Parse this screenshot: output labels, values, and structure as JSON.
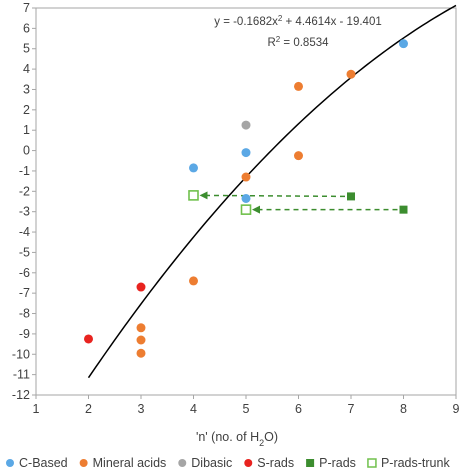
{
  "chart_data": {
    "type": "scatter",
    "x_axis": {
      "range": [
        1,
        9
      ],
      "ticks": [
        "1",
        "2",
        "3",
        "4",
        "5",
        "6",
        "7",
        "8",
        "9"
      ],
      "label_main": "'n' (no. of H",
      "label_sub": "2",
      "label_end": "O)"
    },
    "y_axis": {
      "range": [
        -12,
        7
      ],
      "ticks": [
        "-12",
        "-11",
        "-10",
        "-9",
        "-8",
        "-7",
        "-6",
        "-5",
        "-4",
        "-3",
        "-2",
        "-1",
        "0",
        "1",
        "2",
        "3",
        "4",
        "5",
        "6",
        "7"
      ]
    },
    "grid": false,
    "legend_position": "bottom",
    "series": [
      {
        "name": "C-Based",
        "marker": "circle",
        "color": "#5ba8e5",
        "points": [
          [
            4,
            -0.85
          ],
          [
            5,
            -0.1
          ],
          [
            5,
            -2.35
          ],
          [
            8,
            5.25
          ]
        ]
      },
      {
        "name": "Mineral acids",
        "marker": "circle",
        "color": "#ed7d31",
        "points": [
          [
            3,
            -8.7
          ],
          [
            3,
            -9.3
          ],
          [
            3,
            -9.95
          ],
          [
            4,
            -6.4
          ],
          [
            5,
            -1.3
          ],
          [
            6,
            3.15
          ],
          [
            6,
            -0.25
          ],
          [
            7,
            3.75
          ]
        ]
      },
      {
        "name": "Dibasic",
        "marker": "circle",
        "color": "#a5a5a5",
        "points": [
          [
            5,
            1.25
          ]
        ]
      },
      {
        "name": "S-rads",
        "marker": "circle",
        "color": "#e8231f",
        "points": [
          [
            2,
            -9.25
          ],
          [
            3,
            -6.7
          ]
        ]
      },
      {
        "name": "P-rads",
        "marker": "square-filled",
        "color": "#3c8d2f",
        "points": [
          [
            7,
            -2.25
          ],
          [
            8,
            -2.9
          ]
        ]
      },
      {
        "name": "P-rads-trunk",
        "marker": "square-open",
        "color": "#70c04c",
        "points": [
          [
            4,
            -2.2
          ],
          [
            5,
            -2.9
          ]
        ]
      }
    ],
    "trendline": {
      "type": "polynomial",
      "coefficients": [
        -0.1682,
        4.4614,
        -19.401
      ],
      "x_range": [
        2,
        9
      ],
      "color": "#000000",
      "equation_text": "y = -0.1682x",
      "equation_sup": "2",
      "equation_rest": " + 4.4614x - 19.401",
      "r2_text": "R",
      "r2_sup": "2",
      "r2_rest": " = 0.8534"
    },
    "arrows": [
      {
        "from": [
          7,
          -2.25
        ],
        "to": [
          4,
          -2.2
        ],
        "color": "#3c8d2f",
        "style": "dashed"
      },
      {
        "from": [
          8,
          -2.9
        ],
        "to": [
          5,
          -2.9
        ],
        "color": "#3c8d2f",
        "style": "dashed"
      }
    ]
  }
}
